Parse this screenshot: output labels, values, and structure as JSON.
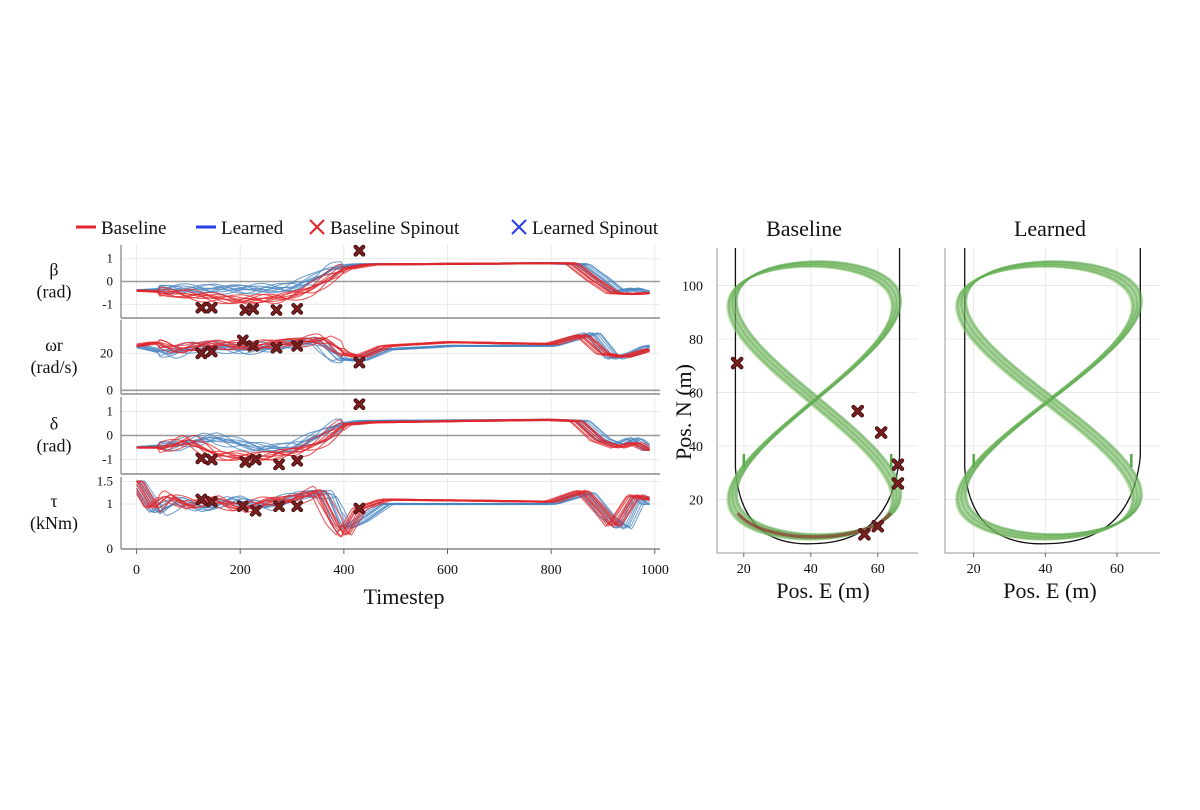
{
  "colors": {
    "baseline": "#e0262b",
    "learned": "#2a3ee8",
    "learned_trace": "#4a86c0",
    "track": "#111111",
    "path_green": "#5aa84e",
    "path_light": "#9fd07e",
    "path_brown": "#8a3a2e",
    "spinout_fill": "#7a1f1f",
    "zero_line": "#9a9a9a",
    "grid": "#e9e9e9"
  },
  "legend": {
    "items": [
      {
        "label": "Baseline",
        "marker": "line",
        "color": "#e0262b"
      },
      {
        "label": "Learned",
        "marker": "line",
        "color": "#2a3ee8"
      },
      {
        "label": "Baseline Spinout",
        "marker": "x",
        "color": "#e0262b"
      },
      {
        "label": "Learned Spinout",
        "marker": "x",
        "color": "#2a3ee8"
      }
    ]
  },
  "chart_data": [
    {
      "type": "line",
      "subplots": [
        {
          "ylabel": [
            "β",
            "(rad)"
          ],
          "ylim": [
            -1.6,
            1.6
          ],
          "yticks": [
            1,
            0,
            -1
          ],
          "yticklabels": [
            "1",
            "0",
            "-1"
          ],
          "zero_line": 0,
          "baseline_profile": [
            [
              0,
              -0.4
            ],
            [
              50,
              -0.45
            ],
            [
              120,
              -0.65
            ],
            [
              200,
              -0.8
            ],
            [
              280,
              -0.75
            ],
            [
              330,
              -0.4
            ],
            [
              360,
              0
            ],
            [
              400,
              0.55
            ],
            [
              450,
              0.75
            ],
            [
              800,
              0.8
            ],
            [
              840,
              0.8
            ],
            [
              880,
              0.1
            ],
            [
              920,
              -0.5
            ],
            [
              960,
              -0.55
            ],
            [
              990,
              -0.5
            ]
          ],
          "learned_profile": [
            [
              0,
              -0.4
            ],
            [
              80,
              -0.3
            ],
            [
              150,
              -0.35
            ],
            [
              240,
              -0.3
            ],
            [
              300,
              -0.3
            ],
            [
              350,
              0.2
            ],
            [
              380,
              0.6
            ],
            [
              430,
              0.75
            ],
            [
              800,
              0.8
            ],
            [
              860,
              0.75
            ],
            [
              900,
              0.1
            ],
            [
              930,
              -0.45
            ],
            [
              960,
              -0.3
            ],
            [
              990,
              -0.5
            ]
          ],
          "spinouts": [
            [
              125,
              -1.15
            ],
            [
              145,
              -1.15
            ],
            [
              210,
              -1.25
            ],
            [
              225,
              -1.2
            ],
            [
              270,
              -1.25
            ],
            [
              310,
              -1.2
            ],
            [
              430,
              1.35
            ]
          ]
        },
        {
          "ylabel": [
            "ωr",
            "(rad/s)"
          ],
          "ylim": [
            -2,
            38
          ],
          "yticks": [
            20,
            0
          ],
          "yticklabels": [
            "20",
            "0"
          ],
          "zero_line": 0,
          "baseline_profile": [
            [
              0,
              24
            ],
            [
              40,
              26
            ],
            [
              80,
              22
            ],
            [
              150,
              25
            ],
            [
              230,
              24
            ],
            [
              300,
              26
            ],
            [
              360,
              28
            ],
            [
              400,
              20
            ],
            [
              430,
              18
            ],
            [
              480,
              24
            ],
            [
              600,
              26
            ],
            [
              800,
              25
            ],
            [
              860,
              30
            ],
            [
              900,
              20
            ],
            [
              940,
              18
            ],
            [
              990,
              22
            ]
          ],
          "learned_profile": [
            [
              0,
              24
            ],
            [
              60,
              20
            ],
            [
              120,
              24
            ],
            [
              200,
              22
            ],
            [
              280,
              24
            ],
            [
              350,
              27
            ],
            [
              390,
              17
            ],
            [
              430,
              16
            ],
            [
              480,
              22
            ],
            [
              600,
              24
            ],
            [
              800,
              24
            ],
            [
              880,
              31
            ],
            [
              920,
              17
            ],
            [
              960,
              20
            ],
            [
              990,
              24
            ]
          ],
          "spinouts": [
            [
              125,
              20
            ],
            [
              145,
              21
            ],
            [
              205,
              27
            ],
            [
              225,
              24
            ],
            [
              270,
              23
            ],
            [
              310,
              24
            ],
            [
              430,
              15
            ]
          ]
        },
        {
          "ylabel": [
            "δ",
            "(rad)"
          ],
          "ylim": [
            -1.6,
            1.6
          ],
          "yticks": [
            1,
            0,
            -1
          ],
          "yticklabels": [
            "1",
            "0",
            "-1"
          ],
          "zero_line": 0,
          "baseline_profile": [
            [
              0,
              -0.5
            ],
            [
              50,
              -0.5
            ],
            [
              100,
              -0.2
            ],
            [
              150,
              -0.8
            ],
            [
              250,
              -0.9
            ],
            [
              320,
              -0.6
            ],
            [
              360,
              -0.2
            ],
            [
              400,
              0.45
            ],
            [
              450,
              0.55
            ],
            [
              800,
              0.65
            ],
            [
              850,
              0.6
            ],
            [
              890,
              -0.2
            ],
            [
              930,
              -0.5
            ],
            [
              960,
              -0.3
            ],
            [
              990,
              -0.6
            ]
          ],
          "learned_profile": [
            [
              0,
              -0.5
            ],
            [
              70,
              -0.4
            ],
            [
              140,
              -0.1
            ],
            [
              240,
              -0.5
            ],
            [
              300,
              -0.55
            ],
            [
              350,
              0
            ],
            [
              390,
              0.45
            ],
            [
              440,
              0.6
            ],
            [
              800,
              0.65
            ],
            [
              860,
              0.6
            ],
            [
              900,
              -0.15
            ],
            [
              930,
              -0.4
            ],
            [
              960,
              -0.1
            ],
            [
              990,
              -0.6
            ]
          ],
          "spinouts": [
            [
              125,
              -0.95
            ],
            [
              145,
              -1.0
            ],
            [
              210,
              -1.1
            ],
            [
              230,
              -1.0
            ],
            [
              275,
              -1.2
            ],
            [
              310,
              -1.05
            ],
            [
              430,
              1.3
            ]
          ]
        },
        {
          "ylabel": [
            "τ",
            "(kNm)"
          ],
          "ylim": [
            0,
            1.6
          ],
          "yticks": [
            1.5,
            1,
            0
          ],
          "yticklabels": [
            "1.5",
            "1",
            "0"
          ],
          "zero_line": 0,
          "baseline_profile": [
            [
              0,
              1.5
            ],
            [
              30,
              0.9
            ],
            [
              60,
              1.2
            ],
            [
              100,
              0.95
            ],
            [
              150,
              1.1
            ],
            [
              200,
              0.9
            ],
            [
              250,
              1.05
            ],
            [
              300,
              1.1
            ],
            [
              350,
              1.3
            ],
            [
              380,
              0.6
            ],
            [
              400,
              0.3
            ],
            [
              430,
              0.9
            ],
            [
              480,
              1.1
            ],
            [
              800,
              1.05
            ],
            [
              860,
              1.3
            ],
            [
              900,
              0.8
            ],
            [
              920,
              0.5
            ],
            [
              960,
              1.2
            ],
            [
              990,
              1.1
            ]
          ],
          "learned_profile": [
            [
              0,
              1.5
            ],
            [
              40,
              0.8
            ],
            [
              80,
              1.1
            ],
            [
              130,
              0.9
            ],
            [
              190,
              1.1
            ],
            [
              250,
              0.95
            ],
            [
              320,
              1.2
            ],
            [
              370,
              1.25
            ],
            [
              400,
              0.45
            ],
            [
              430,
              0.6
            ],
            [
              480,
              1.0
            ],
            [
              800,
              1.0
            ],
            [
              870,
              1.25
            ],
            [
              910,
              0.7
            ],
            [
              940,
              0.45
            ],
            [
              970,
              1.2
            ],
            [
              990,
              1.0
            ]
          ],
          "spinouts": [
            [
              125,
              1.1
            ],
            [
              145,
              1.05
            ],
            [
              205,
              0.95
            ],
            [
              230,
              0.85
            ],
            [
              275,
              0.95
            ],
            [
              310,
              0.95
            ],
            [
              430,
              0.9
            ]
          ]
        }
      ],
      "xlim": [
        -30,
        1010
      ],
      "xticks": [
        0,
        200,
        400,
        600,
        800,
        1000
      ],
      "xticklabels": [
        "0",
        "200",
        "400",
        "600",
        "800",
        "1000"
      ],
      "xlabel": "Timestep"
    },
    {
      "type": "scatter",
      "title": "Baseline",
      "xlabel": "Pos. E (m)",
      "ylabel": "Pos. N (m)",
      "xlim": [
        12,
        72
      ],
      "ylim": [
        0,
        114
      ],
      "xticks": [
        20,
        40,
        60
      ],
      "xticklabels": [
        "20",
        "40",
        "60"
      ],
      "yticks": [
        20,
        40,
        60,
        80,
        100
      ],
      "yticklabels": [
        "20",
        "40",
        "60",
        "80",
        "100"
      ],
      "spinouts": [
        [
          18,
          71
        ],
        [
          54,
          53
        ],
        [
          61,
          45
        ],
        [
          66,
          33
        ],
        [
          66,
          26
        ],
        [
          60,
          10
        ],
        [
          56,
          7
        ]
      ]
    },
    {
      "type": "scatter",
      "title": "Learned",
      "xlabel": "Pos. E (m)",
      "ylabel": "",
      "xlim": [
        12,
        72
      ],
      "ylim": [
        0,
        114
      ],
      "xticks": [
        20,
        40,
        60
      ],
      "xticklabels": [
        "20",
        "40",
        "60"
      ],
      "yticks": [
        20,
        40,
        60,
        80,
        100
      ],
      "yticklabels": [],
      "spinouts": []
    }
  ]
}
